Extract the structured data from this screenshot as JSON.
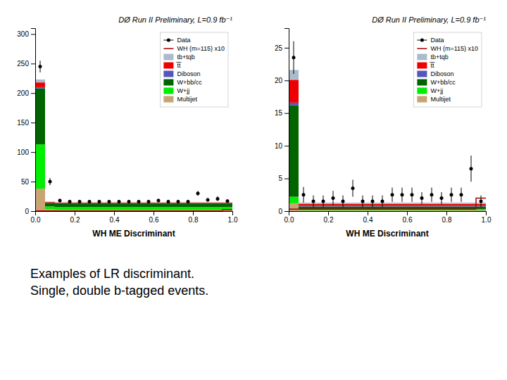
{
  "chart_data": [
    {
      "type": "bar",
      "stacked": true,
      "grid": false,
      "legend": "upper right",
      "title": "DØ Run II Preliminary, L=0.9 fb⁻¹",
      "xlabel": "WH ME Discriminant",
      "xlim": [
        0,
        1
      ],
      "xticks": [
        {
          "value": 0,
          "label": "0.0"
        },
        0.2,
        0.4,
        0.6,
        0.8,
        {
          "value": 1.0,
          "label": "1.0"
        }
      ],
      "ylim": [
        0,
        310
      ],
      "yticks": [
        0,
        50,
        100,
        150,
        200,
        250,
        300
      ],
      "bins": [
        0.0,
        0.05,
        0.1,
        0.15,
        0.2,
        0.25,
        0.3,
        0.35,
        0.4,
        0.45,
        0.5,
        0.55,
        0.6,
        0.65,
        0.7,
        0.75,
        0.8,
        0.85,
        0.9,
        0.95,
        1.0
      ],
      "series": [
        {
          "name": "Multijet",
          "type": "bar",
          "color": "#c8a474",
          "values": [
            38,
            3,
            2,
            2,
            2,
            2,
            2,
            2,
            2,
            2,
            2,
            2,
            2,
            2,
            2,
            2,
            2,
            2,
            2,
            2
          ]
        },
        {
          "name": "W+jj",
          "type": "bar",
          "color": "#00ee00",
          "values": [
            75,
            5,
            5,
            5,
            5,
            5,
            5,
            5,
            5,
            5,
            5,
            5,
            5,
            5,
            5,
            5,
            5,
            5,
            5,
            5
          ]
        },
        {
          "name": "W+bb/cc",
          "type": "bar",
          "color": "#006400",
          "values": [
            95,
            6,
            6,
            6,
            6,
            6,
            6,
            6,
            6,
            6,
            6,
            6,
            6,
            6,
            6,
            6,
            6,
            6,
            6,
            6
          ]
        },
        {
          "name": "Diboson",
          "type": "bar",
          "color": "#5555bb",
          "values": [
            2,
            0.5,
            0.5,
            0.5,
            0.5,
            0.5,
            0.5,
            0.5,
            0.5,
            0.5,
            0.5,
            0.5,
            0.5,
            0.5,
            0.5,
            0.5,
            0.5,
            0.5,
            0.5,
            0.5
          ]
        },
        {
          "name": "t̅t̅",
          "type": "bar",
          "color": "#ee0000",
          "values": [
            8,
            1,
            1,
            1,
            1,
            1,
            1,
            1,
            1,
            1,
            1,
            1,
            1,
            1,
            1,
            1,
            1,
            1,
            1,
            1
          ]
        },
        {
          "name": "tb+tqb",
          "type": "bar",
          "color": "#aabbcc",
          "values": [
            5,
            0.5,
            0.5,
            0.5,
            0.5,
            0.5,
            0.5,
            0.5,
            0.5,
            0.5,
            0.5,
            0.5,
            0.5,
            0.5,
            0.5,
            0.5,
            0.5,
            0.5,
            0.5,
            0.5
          ]
        },
        {
          "name": "WH (m=115) x10",
          "type": "step",
          "color": "#aa0000",
          "values": [
            0.3,
            0.3,
            0.3,
            0.3,
            0.3,
            0.3,
            0.3,
            0.3,
            0.3,
            0.3,
            0.3,
            0.3,
            0.3,
            0.3,
            0.3,
            0.3,
            0.3,
            0.3,
            0.3,
            2.0
          ]
        },
        {
          "name": "Data",
          "type": "scatter",
          "color": "black",
          "x": [
            0.025,
            0.075,
            0.125,
            0.175,
            0.225,
            0.275,
            0.325,
            0.375,
            0.425,
            0.475,
            0.525,
            0.575,
            0.625,
            0.675,
            0.725,
            0.775,
            0.825,
            0.875,
            0.925,
            0.975
          ],
          "values": [
            245,
            50,
            18,
            16,
            16,
            16,
            16,
            16,
            16,
            16,
            16,
            16,
            18,
            16,
            16,
            16,
            30,
            19,
            21,
            17
          ],
          "error": [
            10,
            6,
            3,
            3,
            3,
            3,
            3,
            3,
            3,
            3,
            3,
            3,
            3,
            3,
            3,
            3,
            4,
            3,
            4,
            3
          ]
        }
      ]
    },
    {
      "type": "bar",
      "stacked": true,
      "grid": false,
      "legend": "upper right",
      "title": "DØ Run II Preliminary, L=0.9 fb⁻¹",
      "xlabel": "WH ME Discriminant",
      "xlim": [
        0,
        1
      ],
      "xticks": [
        {
          "value": 0,
          "label": "0.0"
        },
        0.2,
        0.4,
        0.6,
        0.8,
        {
          "value": 1.0,
          "label": "1.0"
        }
      ],
      "ylim": [
        0,
        28
      ],
      "yticks": [
        0,
        5,
        10,
        15,
        20,
        25
      ],
      "bins": [
        0.0,
        0.05,
        0.1,
        0.15,
        0.2,
        0.25,
        0.3,
        0.35,
        0.4,
        0.45,
        0.5,
        0.55,
        0.6,
        0.65,
        0.7,
        0.75,
        0.8,
        0.85,
        0.9,
        0.95,
        1.0
      ],
      "series": [
        {
          "name": "Multijet",
          "type": "bar",
          "color": "#c8a474",
          "values": [
            1.2,
            0.15,
            0.15,
            0.15,
            0.15,
            0.15,
            0.15,
            0.15,
            0.15,
            0.15,
            0.15,
            0.15,
            0.15,
            0.15,
            0.15,
            0.15,
            0.15,
            0.15,
            0.15,
            0.15
          ]
        },
        {
          "name": "W+jj",
          "type": "bar",
          "color": "#00ee00",
          "values": [
            1.0,
            0.15,
            0.15,
            0.15,
            0.15,
            0.15,
            0.15,
            0.15,
            0.15,
            0.15,
            0.15,
            0.15,
            0.15,
            0.15,
            0.15,
            0.15,
            0.15,
            0.15,
            0.15,
            0.15
          ]
        },
        {
          "name": "W+bb/cc",
          "type": "bar",
          "color": "#006400",
          "values": [
            14,
            0.4,
            0.4,
            0.4,
            0.4,
            0.4,
            0.4,
            0.4,
            0.4,
            0.4,
            0.4,
            0.4,
            0.4,
            0.4,
            0.4,
            0.4,
            0.4,
            0.4,
            0.4,
            0.4
          ]
        },
        {
          "name": "Diboson",
          "type": "bar",
          "color": "#5555bb",
          "values": [
            0.4,
            0.1,
            0.1,
            0.1,
            0.1,
            0.1,
            0.1,
            0.1,
            0.1,
            0.1,
            0.1,
            0.1,
            0.1,
            0.1,
            0.1,
            0.1,
            0.1,
            0.1,
            0.1,
            0.1
          ]
        },
        {
          "name": "t̅t̅",
          "type": "bar",
          "color": "#ee0000",
          "values": [
            3.5,
            0.3,
            0.3,
            0.3,
            0.3,
            0.3,
            0.3,
            0.3,
            0.3,
            0.3,
            0.3,
            0.3,
            0.3,
            0.3,
            0.3,
            0.3,
            0.3,
            0.3,
            0.3,
            0.3
          ]
        },
        {
          "name": "tb+tqb",
          "type": "bar",
          "color": "#aabbcc",
          "values": [
            1.5,
            0.2,
            0.2,
            0.2,
            0.2,
            0.2,
            0.2,
            0.2,
            0.2,
            0.2,
            0.2,
            0.2,
            0.2,
            0.2,
            0.2,
            0.2,
            0.2,
            0.2,
            0.2,
            0.2
          ]
        },
        {
          "name": "WH (m=115) x10",
          "type": "step",
          "color": "#aa0000",
          "values": [
            0.3,
            0.3,
            0.3,
            0.3,
            0.3,
            0.3,
            0.3,
            0.3,
            0.3,
            0.3,
            0.3,
            0.3,
            0.3,
            0.3,
            0.3,
            0.3,
            0.3,
            0.3,
            0.3,
            2.0
          ]
        },
        {
          "name": "Data",
          "type": "scatter",
          "color": "black",
          "x": [
            0.025,
            0.075,
            0.125,
            0.175,
            0.225,
            0.275,
            0.325,
            0.375,
            0.425,
            0.475,
            0.525,
            0.575,
            0.625,
            0.675,
            0.725,
            0.775,
            0.825,
            0.875,
            0.925,
            0.975
          ],
          "values": [
            23.5,
            2.5,
            1.5,
            1.5,
            2.0,
            1.5,
            3.5,
            1.5,
            1.5,
            1.5,
            2.5,
            2.5,
            2.5,
            2.0,
            2.5,
            2.0,
            2.5,
            2.5,
            6.5,
            1.5
          ],
          "error": [
            2.5,
            1.2,
            0.9,
            0.9,
            1.1,
            0.9,
            1.3,
            0.9,
            0.9,
            0.9,
            1.1,
            1.1,
            1.1,
            0.9,
            1.1,
            0.9,
            1.1,
            1.1,
            2.0,
            0.9
          ]
        }
      ]
    }
  ],
  "caption": [
    "Examples of LR discriminant.",
    "Single, double b-tagged events."
  ]
}
